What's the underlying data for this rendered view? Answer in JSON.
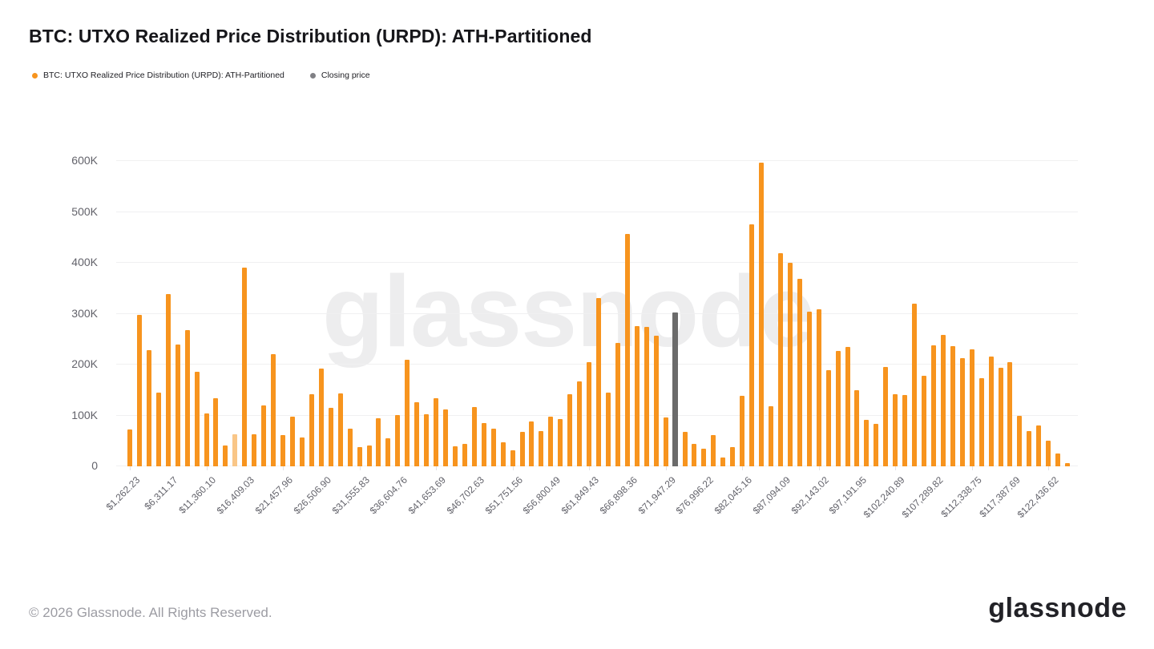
{
  "title": "BTC: UTXO Realized Price Distribution (URPD): ATH-Partitioned",
  "legend": {
    "series": {
      "label": "BTC: UTXO Realized Price Distribution (URPD): ATH-Partitioned",
      "color": "#F7941E"
    },
    "closing": {
      "label": "Closing price",
      "color": "#808085"
    }
  },
  "watermark": "glassnode",
  "footer": {
    "copyright": "© 2026 Glassnode. All Rights Reserved.",
    "logo_text": "glassnode"
  },
  "colors": {
    "bar": "#F7941E",
    "bar_light": "#F9C687",
    "closing_bar": "#6B6B6B",
    "gridline": "#F0F0F1",
    "axis_text": "#63636B"
  },
  "chart_data": {
    "type": "bar",
    "title": "BTC: UTXO Realized Price Distribution (URPD): ATH-Partitioned",
    "xlabel": "",
    "ylabel": "",
    "yunit": "K",
    "ylim": [
      0,
      600000
    ],
    "grid": "horizontal",
    "legend_position": "top-left",
    "ytick_labels": [
      "0",
      "100K",
      "200K",
      "300K",
      "400K",
      "500K",
      "600K"
    ],
    "xtick_labels": [
      "$1,262.23",
      "$6,311.17",
      "$11,360.10",
      "$16,409.03",
      "$21,457.96",
      "$26,506.90",
      "$31,555.83",
      "$36,604.76",
      "$41,653.69",
      "$46,702.63",
      "$51,751.56",
      "$56,800.49",
      "$61,849.43",
      "$66,898.36",
      "$71,947.29",
      "$76,996.22",
      "$82,045.16",
      "$87,094.09",
      "$92,143.02",
      "$97,191.95",
      "$102,240.89",
      "$107,289.82",
      "$112,338.75",
      "$117,387.69",
      "$122,436.62"
    ],
    "xtick_every_n_bars": 4,
    "values_thousands": [
      72,
      297,
      228,
      145,
      339,
      239,
      268,
      186,
      104,
      134,
      41,
      63,
      390,
      63,
      120,
      220,
      62,
      98,
      57,
      142,
      192,
      115,
      143,
      74,
      38,
      41,
      95,
      55,
      101,
      209,
      126,
      102,
      134,
      112,
      39,
      44,
      117,
      85,
      74,
      47,
      31,
      68,
      88,
      69,
      98,
      93,
      142,
      167,
      205,
      331,
      145,
      242,
      457,
      276,
      274,
      257,
      96,
      302,
      68,
      44,
      35,
      61,
      17,
      38,
      139,
      476,
      597,
      118,
      419,
      400,
      369,
      304,
      309,
      189,
      227,
      235,
      150,
      91,
      83,
      195,
      142,
      140,
      320,
      178,
      238,
      259,
      237,
      212,
      230,
      174,
      216,
      194,
      204,
      99,
      70,
      80,
      50,
      25,
      7
    ],
    "closing_price_bar_index": 57,
    "light_bar_index": 11
  }
}
